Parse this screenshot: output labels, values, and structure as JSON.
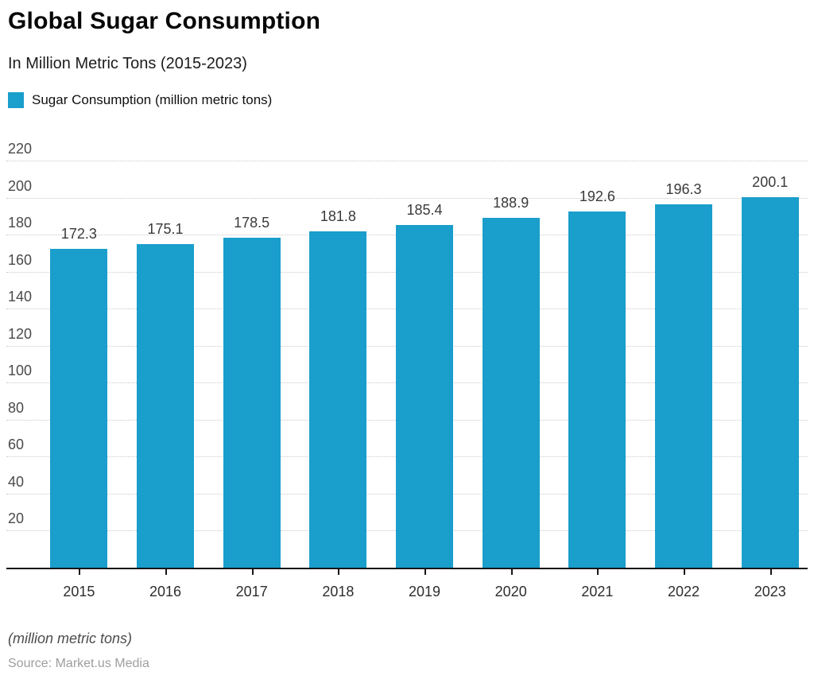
{
  "header": {
    "title": "Global Sugar Consumption",
    "subtitle": "In Million Metric Tons (2015-2023)"
  },
  "legend": {
    "label": "Sugar Consumption (million metric tons)"
  },
  "footer": {
    "unit_note": "(million metric tons)",
    "source": "Source: Market.us Media"
  },
  "colors": {
    "bar": "#1A9ECB",
    "axis_line": "#161616",
    "gridline": "#c9c9c9",
    "y_tick_label": "#4a4a4a",
    "data_label": "#3a3a3a"
  },
  "chart_data": {
    "type": "bar",
    "title": "Global Sugar Consumption",
    "subtitle": "In Million Metric Tons (2015-2023)",
    "legend_entries": [
      "Sugar Consumption (million metric tons)"
    ],
    "legend_position": "top-left",
    "categories": [
      "2015",
      "2016",
      "2017",
      "2018",
      "2019",
      "2020",
      "2021",
      "2022",
      "2023"
    ],
    "values": [
      172.3,
      175.1,
      178.5,
      181.8,
      185.4,
      188.9,
      192.6,
      196.3,
      200.1
    ],
    "data_labels_shown": true,
    "xlabel": "",
    "ylabel": "",
    "ylim": [
      0,
      220
    ],
    "yticks": [
      20,
      40,
      60,
      80,
      100,
      120,
      140,
      160,
      180,
      200,
      220
    ],
    "grid": "horizontal-dotted",
    "bar_color": "#1A9ECB"
  }
}
